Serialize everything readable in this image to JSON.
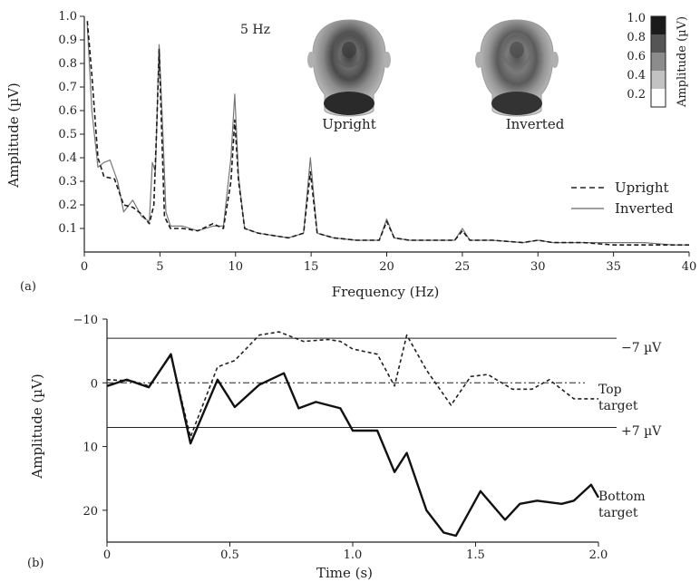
{
  "panel_a": {
    "label": "(a)",
    "annotation_text": "5 Hz",
    "head_labels": [
      "Upright",
      "Inverted"
    ],
    "colorbar": {
      "ticks": [
        "1.0",
        "0.8",
        "0.6",
        "0.4",
        "0.2"
      ],
      "label": "Amplitude (µV)"
    }
  },
  "panel_b": {
    "label": "(b)",
    "reference_labels": [
      "−7 µV",
      "+7 µV"
    ],
    "series_labels": [
      [
        "Top",
        "target"
      ],
      [
        "Bottom",
        "target"
      ]
    ]
  },
  "chart_data": [
    {
      "type": "line",
      "xlabel": "Frequency (Hz)",
      "ylabel": "Amplitude (µV)",
      "xlim": [
        0,
        40
      ],
      "ylim": [
        0,
        1.0
      ],
      "xticks": [
        "0",
        "5",
        "10",
        "15",
        "20",
        "25",
        "30",
        "35",
        "40"
      ],
      "yticks": [
        "0.1",
        "0.2",
        "0.3",
        "0.4",
        "0.5",
        "0.6",
        "0.7",
        "0.8",
        "0.9",
        "1.0"
      ],
      "legend": "right",
      "series": [
        {
          "name": "Upright",
          "style": "dashed",
          "x": [
            0.2,
            0.5,
            0.9,
            1.3,
            2.0,
            2.6,
            3.2,
            3.8,
            4.3,
            4.6,
            4.8,
            4.95,
            5.1,
            5.3,
            5.7,
            6.5,
            7.5,
            8.5,
            9.2,
            9.7,
            9.95,
            10.2,
            10.6,
            11.5,
            12.5,
            13.5,
            14.5,
            14.95,
            15.4,
            16.5,
            18,
            19.5,
            20.0,
            20.5,
            21.5,
            23,
            24.5,
            25.0,
            25.5,
            27,
            29,
            30,
            31,
            33,
            35,
            37,
            39,
            40
          ],
          "y": [
            0.98,
            0.75,
            0.4,
            0.32,
            0.31,
            0.2,
            0.19,
            0.16,
            0.12,
            0.2,
            0.55,
            0.86,
            0.55,
            0.15,
            0.1,
            0.1,
            0.09,
            0.12,
            0.1,
            0.3,
            0.56,
            0.3,
            0.1,
            0.08,
            0.07,
            0.06,
            0.08,
            0.34,
            0.08,
            0.06,
            0.05,
            0.05,
            0.13,
            0.06,
            0.05,
            0.05,
            0.05,
            0.09,
            0.05,
            0.05,
            0.04,
            0.05,
            0.04,
            0.04,
            0.03,
            0.03,
            0.03,
            0.03
          ]
        },
        {
          "name": "Inverted",
          "style": "solid",
          "x": [
            0.2,
            0.5,
            0.9,
            1.3,
            1.7,
            2.2,
            2.6,
            3.2,
            3.8,
            4.3,
            4.5,
            4.7,
            4.95,
            5.2,
            5.4,
            5.7,
            6.5,
            7.5,
            8.5,
            9.2,
            9.7,
            9.95,
            10.2,
            10.6,
            11.5,
            12.5,
            13.5,
            14.5,
            14.95,
            15.4,
            16.5,
            18,
            19.5,
            20.0,
            20.5,
            21.5,
            23,
            24.5,
            25.0,
            25.5,
            27,
            29,
            30,
            31,
            33,
            35,
            37,
            39,
            40
          ],
          "y": [
            0.96,
            0.6,
            0.36,
            0.38,
            0.39,
            0.3,
            0.17,
            0.22,
            0.15,
            0.13,
            0.38,
            0.34,
            0.88,
            0.5,
            0.17,
            0.11,
            0.11,
            0.09,
            0.11,
            0.11,
            0.4,
            0.67,
            0.32,
            0.1,
            0.08,
            0.07,
            0.06,
            0.08,
            0.4,
            0.08,
            0.06,
            0.05,
            0.05,
            0.14,
            0.06,
            0.05,
            0.05,
            0.05,
            0.1,
            0.05,
            0.05,
            0.04,
            0.05,
            0.04,
            0.04,
            0.04,
            0.04,
            0.03,
            0.03
          ]
        }
      ]
    },
    {
      "type": "line",
      "xlabel": "Time (s)",
      "ylabel": "Amplitude (µV)",
      "xlim": [
        0,
        2.0
      ],
      "ylim": [
        -10,
        25
      ],
      "y_inverted": true,
      "xticks": [
        "0",
        "0.5",
        "1.0",
        "1.5",
        "2.0"
      ],
      "yticks": [
        "−10",
        "0",
        "10",
        "20"
      ],
      "reference_lines": [
        -7,
        0,
        7
      ],
      "series": [
        {
          "name": "Top target",
          "style": "dashed",
          "x": [
            0,
            0.1,
            0.17,
            0.26,
            0.34,
            0.45,
            0.52,
            0.62,
            0.7,
            0.8,
            0.9,
            0.95,
            1.0,
            1.1,
            1.17,
            1.22,
            1.3,
            1.4,
            1.48,
            1.55,
            1.65,
            1.73,
            1.8,
            1.9,
            2.0
          ],
          "y": [
            -0.5,
            -0.3,
            0.5,
            -4.3,
            8.5,
            -2.5,
            -3.5,
            -7.5,
            -8,
            -6.5,
            -6.8,
            -6.5,
            -5.3,
            -4.5,
            0.5,
            -7.5,
            -2,
            3.5,
            -1,
            -1.3,
            1,
            1,
            -0.5,
            2.5,
            2.5
          ]
        },
        {
          "name": "Bottom target",
          "style": "solid",
          "x": [
            0,
            0.08,
            0.17,
            0.26,
            0.34,
            0.45,
            0.52,
            0.62,
            0.72,
            0.78,
            0.85,
            0.95,
            1.0,
            1.05,
            1.1,
            1.17,
            1.22,
            1.3,
            1.37,
            1.42,
            1.52,
            1.62,
            1.68,
            1.75,
            1.85,
            1.9,
            1.97,
            2.0
          ],
          "y": [
            0.5,
            -0.5,
            0.7,
            -4.5,
            9.5,
            -0.5,
            3.8,
            0.3,
            -1.5,
            4,
            3,
            4,
            7.5,
            7.5,
            7.5,
            14,
            11,
            20,
            23.5,
            24,
            17,
            21.5,
            19,
            18.5,
            19,
            18.5,
            16,
            18
          ]
        }
      ]
    }
  ]
}
